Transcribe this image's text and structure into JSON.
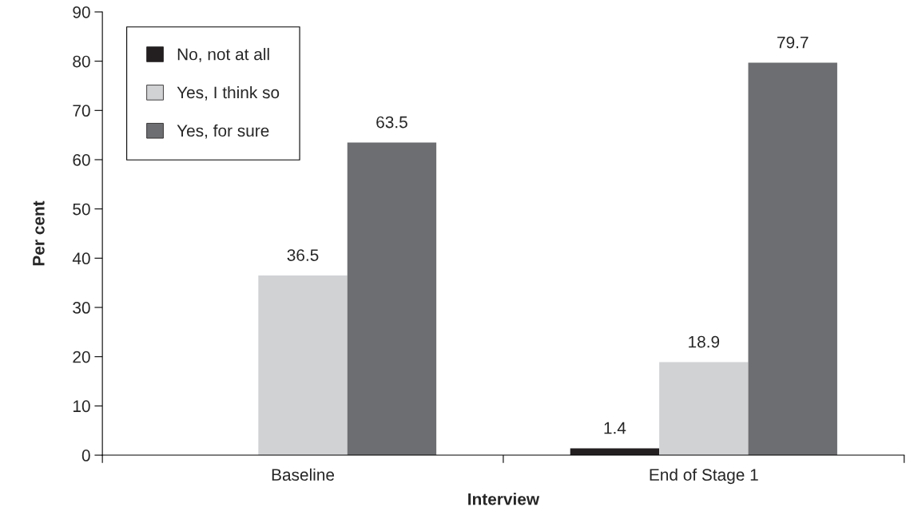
{
  "chart_data": {
    "type": "bar",
    "xlabel": "Interview",
    "ylabel": "Per cent",
    "categories": [
      "Baseline",
      "End of Stage 1"
    ],
    "series": [
      {
        "name": "No, not at all",
        "color": "#231f20",
        "values": [
          null,
          1.4
        ]
      },
      {
        "name": "Yes, I think so",
        "color": "#d1d2d4",
        "values": [
          36.5,
          18.9
        ]
      },
      {
        "name": "Yes, for sure",
        "color": "#6d6e71",
        "values": [
          63.5,
          79.7
        ]
      }
    ],
    "ylim": [
      0,
      90
    ],
    "yticks": [
      0,
      10,
      20,
      30,
      40,
      50,
      60,
      70,
      80,
      90
    ],
    "data_labels": true,
    "legend": "top left",
    "grid": false
  }
}
